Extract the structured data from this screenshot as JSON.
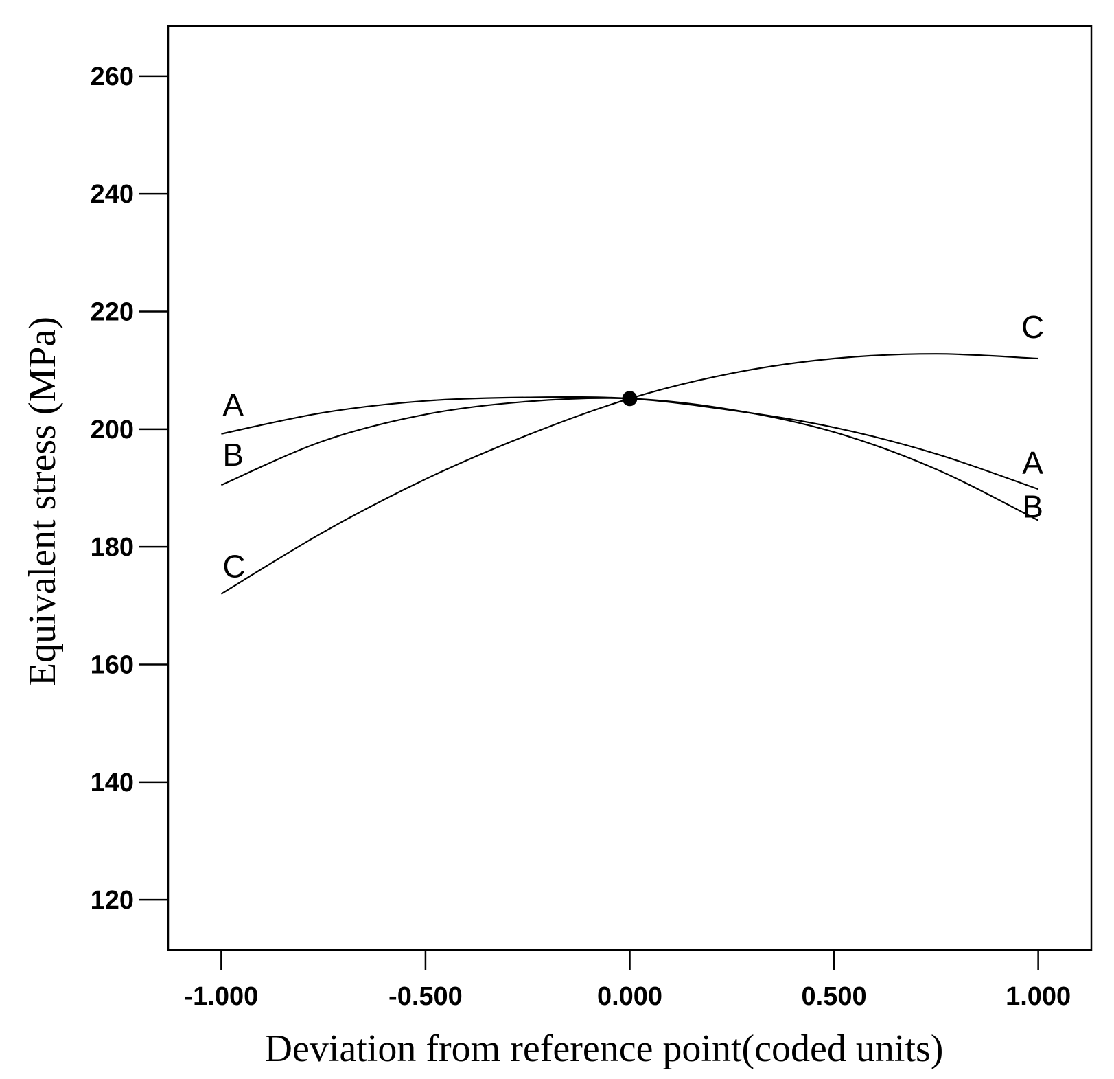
{
  "chart_data": {
    "type": "line",
    "title": "",
    "xlabel": "Deviation  from reference point(coded units)",
    "ylabel": "Equivalent stress (MPa)",
    "xlim": [
      -1.13,
      1.13
    ],
    "ylim": [
      111.5,
      268.5
    ],
    "xticks": [
      -1.0,
      -0.5,
      0.0,
      0.5,
      1.0
    ],
    "xtick_labels": [
      "-1.000",
      "-0.500",
      "0.000",
      "0.500",
      "1.000"
    ],
    "yticks": [
      120,
      140,
      160,
      180,
      200,
      220,
      240,
      260
    ],
    "ytick_labels": [
      "120",
      "140",
      "160",
      "180",
      "200",
      "220",
      "240",
      "260"
    ],
    "grid": false,
    "reference_point": {
      "x": 0.0,
      "y": 205.2
    },
    "series": [
      {
        "name": "A",
        "start_label": "A",
        "end_label": "A",
        "x": [
          -1.0,
          -0.75,
          -0.5,
          -0.25,
          0.0,
          0.25,
          0.5,
          0.75,
          1.0
        ],
        "y": [
          199.2,
          202.8,
          204.8,
          205.4,
          205.2,
          203.2,
          200.3,
          195.8,
          189.8
        ]
      },
      {
        "name": "B",
        "start_label": "B",
        "end_label": "B",
        "x": [
          -1.0,
          -0.75,
          -0.5,
          -0.25,
          0.0,
          0.25,
          0.5,
          0.75,
          1.0
        ],
        "y": [
          190.5,
          198.0,
          202.5,
          204.7,
          205.2,
          203.3,
          199.5,
          193.2,
          184.5
        ]
      },
      {
        "name": "C",
        "start_label": "C",
        "end_label": "C",
        "x": [
          -1.0,
          -0.75,
          -0.5,
          -0.25,
          0.0,
          0.25,
          0.5,
          0.75,
          1.0
        ],
        "y": [
          172.0,
          182.5,
          191.5,
          199.0,
          205.2,
          209.5,
          212.0,
          212.8,
          212.0
        ]
      }
    ]
  }
}
